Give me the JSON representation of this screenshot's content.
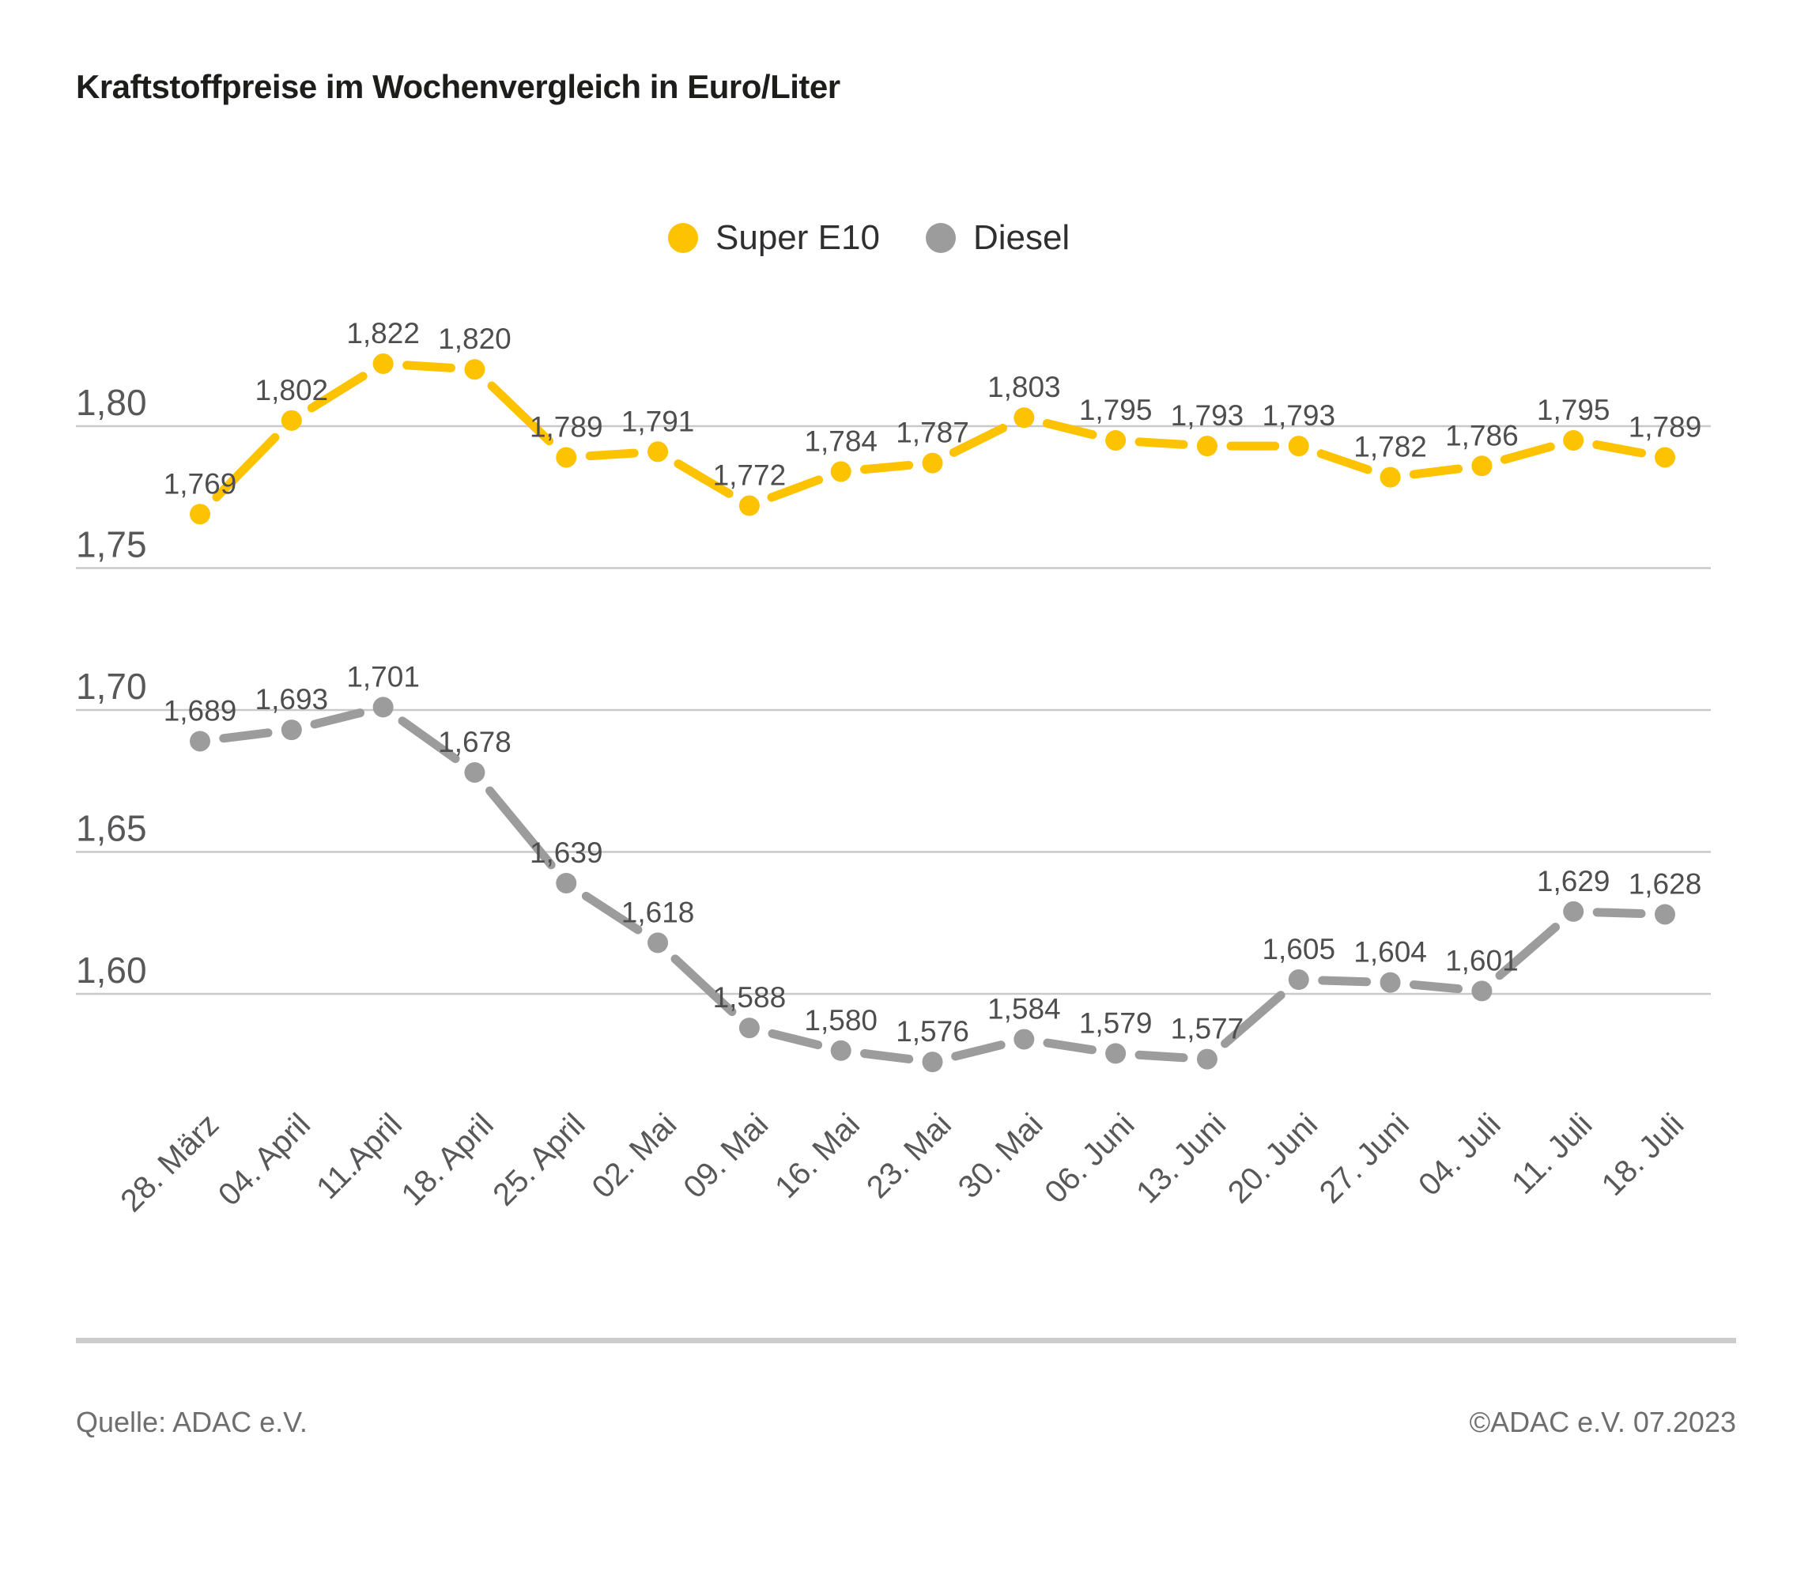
{
  "title": "Kraftstoffpreise im Wochenvergleich in Euro/Liter",
  "footer": {
    "source": "Quelle: ADAC e.V.",
    "copyright": "©ADAC e.V. 07.2023"
  },
  "chart_data": {
    "type": "line",
    "title": "Kraftstoffpreise im Wochenvergleich in Euro/Liter",
    "unit": "Euro/Liter",
    "grid": true,
    "legend_position": "top-center",
    "categories": [
      "28. März",
      "04. April",
      "11.April",
      "18. April",
      "25. April",
      "02. Mai",
      "09. Mai",
      "16. Mai",
      "23. Mai",
      "30. Mai",
      "06. Juni",
      "13. Juni",
      "20. Juni",
      "27. Juni",
      "04. Juli",
      "11. Juli",
      "18. Juli"
    ],
    "series": [
      {
        "name": "Super E10",
        "color": "#FDC300",
        "values": [
          1.769,
          1.802,
          1.822,
          1.82,
          1.789,
          1.791,
          1.772,
          1.784,
          1.787,
          1.803,
          1.795,
          1.793,
          1.793,
          1.782,
          1.786,
          1.795,
          1.789
        ],
        "labels": [
          "1,769",
          "1,802",
          "1,822",
          "1,820",
          "1,789",
          "1,791",
          "1,772",
          "1,784",
          "1,787",
          "1,803",
          "1,795",
          "1,793",
          "1,793",
          "1,782",
          "1,786",
          "1,795",
          "1,789"
        ]
      },
      {
        "name": "Diesel",
        "color": "#9C9C9C",
        "values": [
          1.689,
          1.693,
          1.701,
          1.678,
          1.639,
          1.618,
          1.588,
          1.58,
          1.576,
          1.584,
          1.579,
          1.577,
          1.605,
          1.604,
          1.601,
          1.629,
          1.628
        ],
        "labels": [
          "1,689",
          "1,693",
          "1,701",
          "1,678",
          "1,639",
          "1,618",
          "1,588",
          "1,580",
          "1,576",
          "1,584",
          "1,579",
          "1,577",
          "1,605",
          "1,604",
          "1,601",
          "1,629",
          "1,628"
        ]
      }
    ],
    "y_axis": {
      "tick_values": [
        1.8,
        1.75,
        1.7,
        1.65,
        1.6
      ],
      "tick_labels": [
        "1,80",
        "1,75",
        "1,70",
        "1,65",
        "1,60"
      ],
      "range": [
        1.555,
        1.84
      ]
    }
  }
}
